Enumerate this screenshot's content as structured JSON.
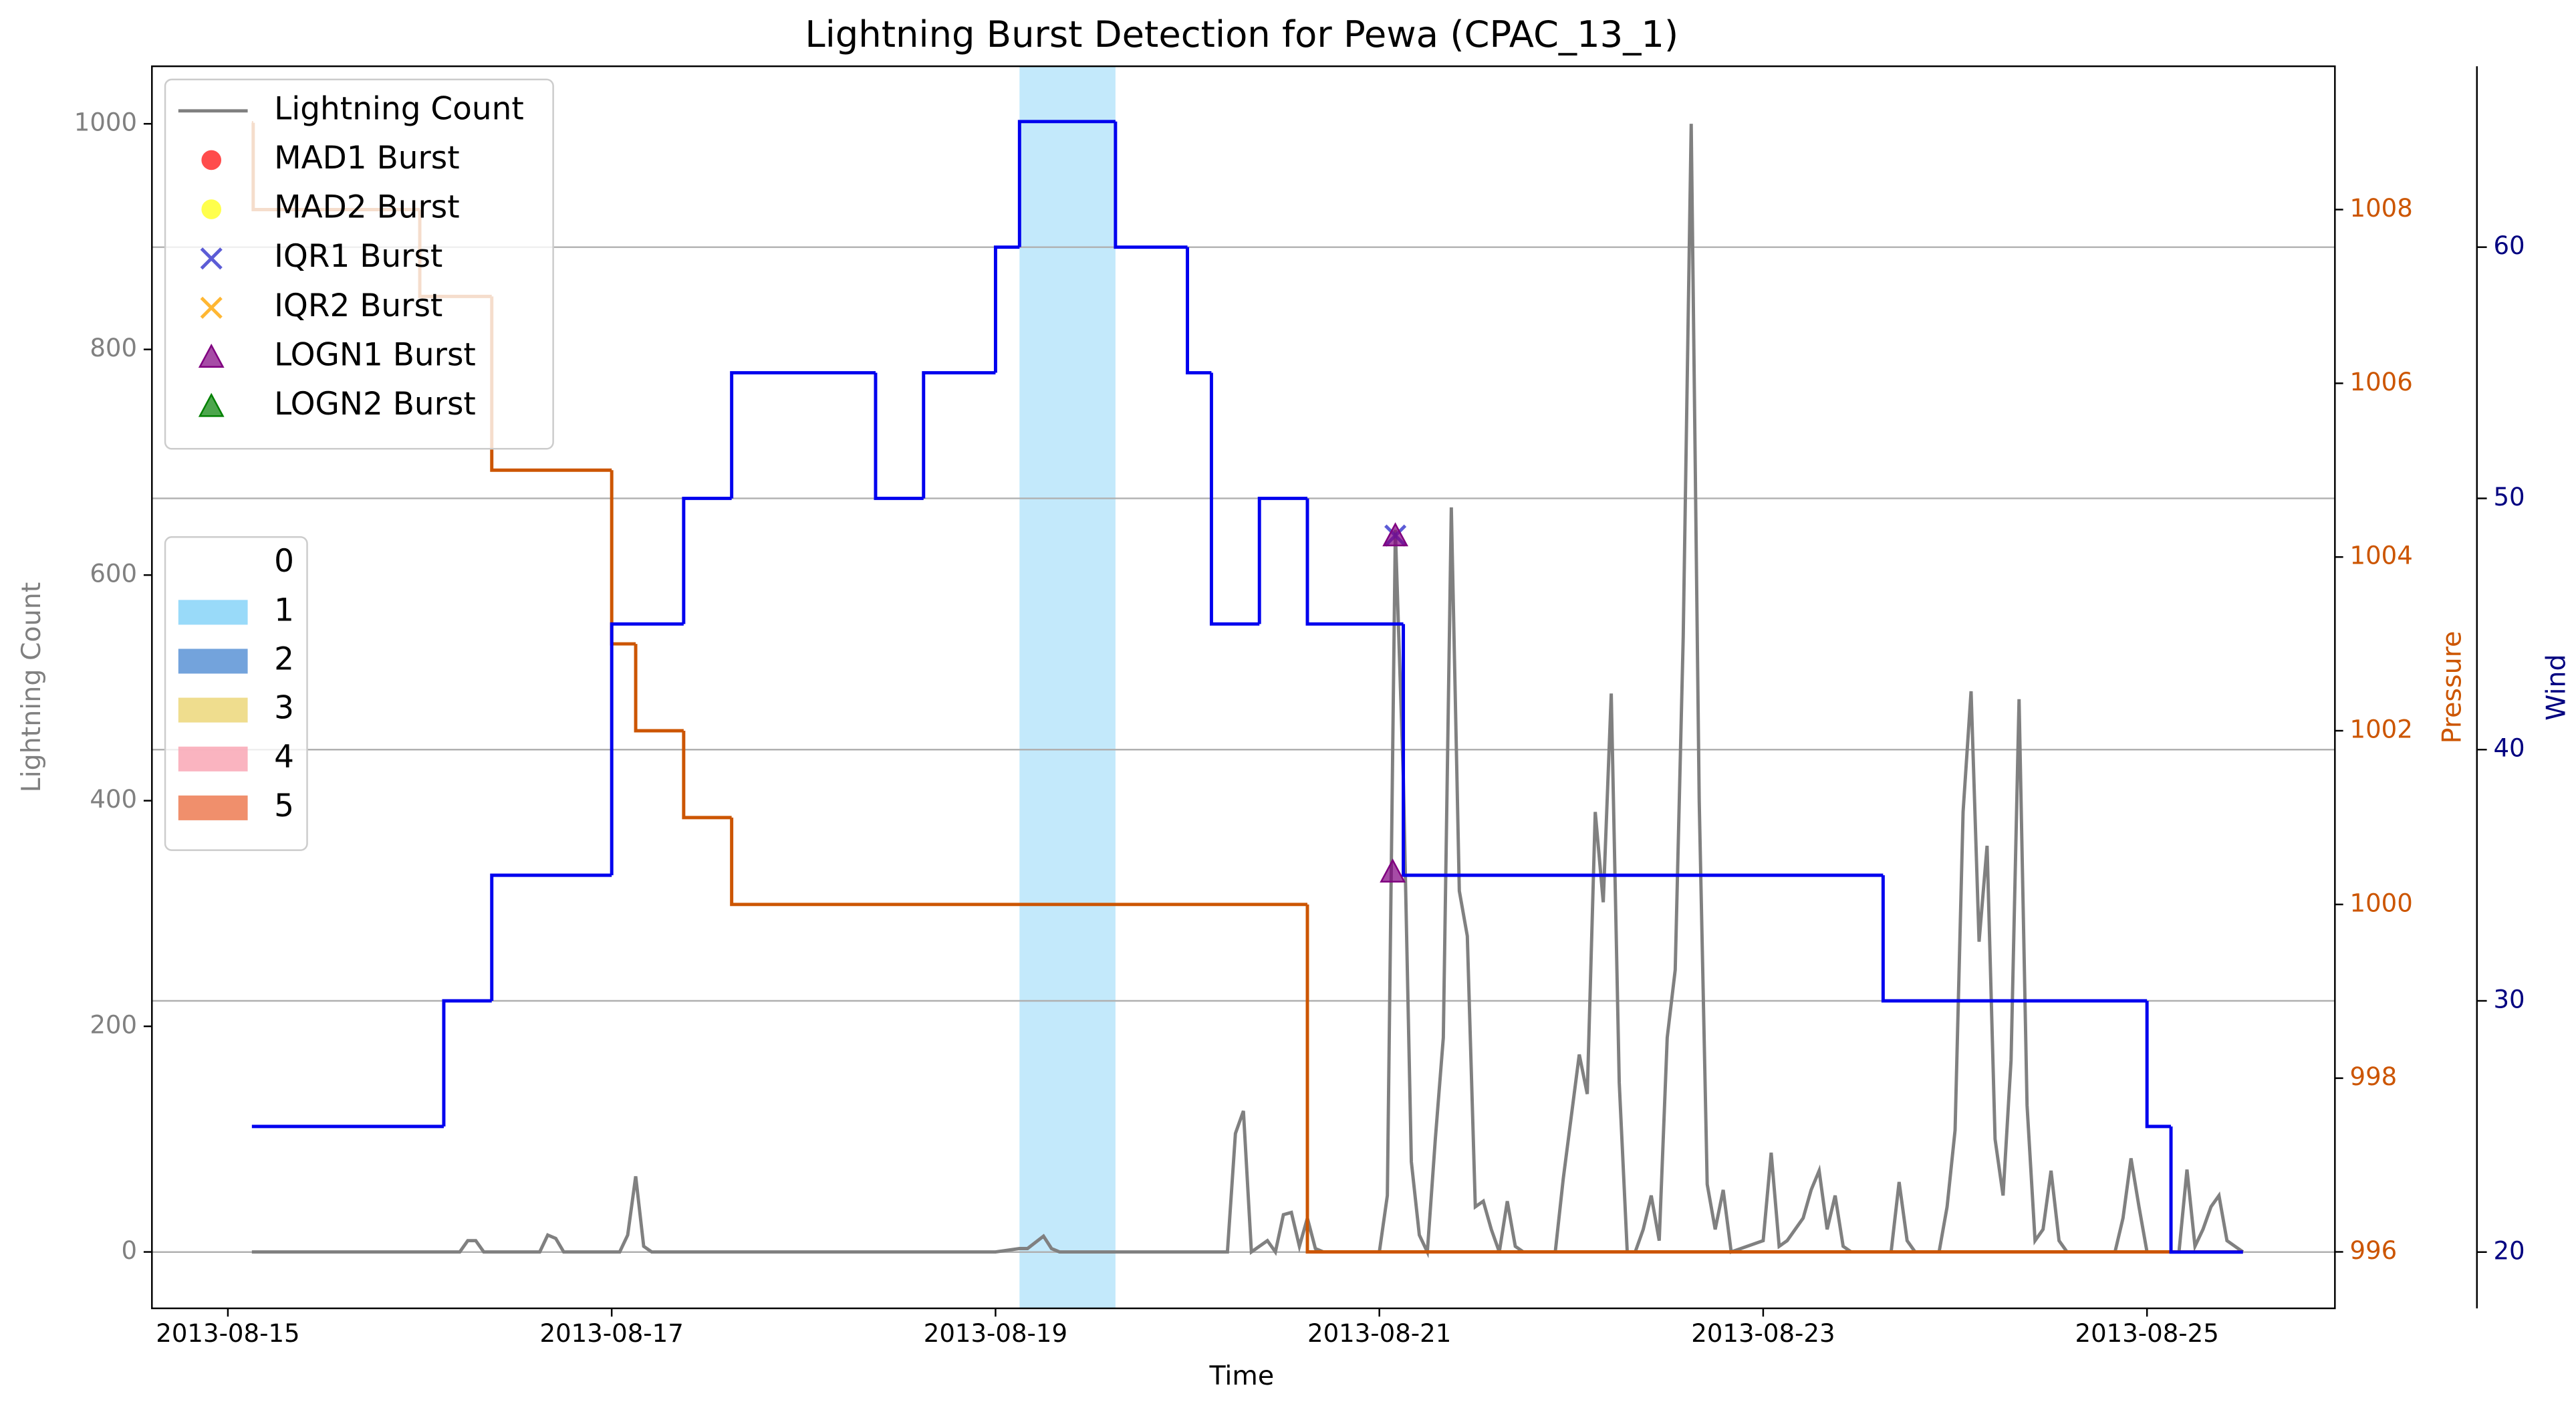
{
  "chart_data": {
    "type": "line",
    "title": "Lightning Burst Detection for Pewa (CPAC_13_1)",
    "xlabel": "Time",
    "ylabel": "Lightning Count",
    "y2label": "Pressure",
    "y3label": "Wind",
    "xlim": [
      "2013-08-14 14:30",
      "2013-08-25 23:30"
    ],
    "xticks": [
      "2013-08-15",
      "2013-08-17",
      "2013-08-19",
      "2013-08-21",
      "2013-08-23",
      "2013-08-25"
    ],
    "ylim": [
      -50,
      1051
    ],
    "yticks": [
      0,
      200,
      400,
      600,
      800,
      1000
    ],
    "y2lim": [
      995.35,
      1009.65
    ],
    "y2ticks": [
      996,
      998,
      1000,
      1002,
      1004,
      1006,
      1008
    ],
    "y3lim": [
      17.76,
      67.2
    ],
    "y3ticks": [
      20,
      30,
      40,
      50,
      60
    ],
    "grid": "y3",
    "legend": "upper left",
    "spans": [
      {
        "start": "2013-08-19 03:00",
        "end": "2013-08-19 15:00",
        "category": 1
      }
    ],
    "span_legend": {
      "labels": [
        "0",
        "1",
        "2",
        "3",
        "4",
        "5"
      ],
      "colors": [
        "#ffffff",
        "#87d3f8",
        "#5a93d6",
        "#ecd77a",
        "#f9a7b5",
        "#ed7b52"
      ]
    },
    "series": [
      {
        "name": "Lightning Count",
        "type": "line",
        "color": "#808080",
        "x": [
          "2013-08-15 03:00",
          "2013-08-16 05:00",
          "2013-08-16 06:00",
          "2013-08-16 07:00",
          "2013-08-16 08:00",
          "2013-08-16 15:00",
          "2013-08-16 16:00",
          "2013-08-16 17:00",
          "2013-08-16 18:00",
          "2013-08-17 01:00",
          "2013-08-17 02:00",
          "2013-08-17 03:00",
          "2013-08-17 04:00",
          "2013-08-17 05:00",
          "2013-08-19 00:00",
          "2013-08-19 03:00",
          "2013-08-19 04:00",
          "2013-08-19 06:00",
          "2013-08-19 07:00",
          "2013-08-19 08:00",
          "2013-08-20 05:00",
          "2013-08-20 06:00",
          "2013-08-20 07:00",
          "2013-08-20 08:00",
          "2013-08-20 10:00",
          "2013-08-20 11:00",
          "2013-08-20 12:00",
          "2013-08-20 13:00",
          "2013-08-20 14:00",
          "2013-08-20 15:00",
          "2013-08-20 16:00",
          "2013-08-20 17:00",
          "2013-08-21 00:00",
          "2013-08-21 01:00",
          "2013-08-21 02:00",
          "2013-08-21 03:00",
          "2013-08-21 04:00",
          "2013-08-21 05:00",
          "2013-08-21 06:00",
          "2013-08-21 07:00",
          "2013-08-21 08:00",
          "2013-08-21 09:00",
          "2013-08-21 10:00",
          "2013-08-21 11:00",
          "2013-08-21 12:00",
          "2013-08-21 13:00",
          "2013-08-21 14:00",
          "2013-08-21 15:00",
          "2013-08-21 16:00",
          "2013-08-21 17:00",
          "2013-08-21 18:00",
          "2013-08-21 22:00",
          "2013-08-21 23:00",
          "2013-08-22 00:00",
          "2013-08-22 01:00",
          "2013-08-22 02:00",
          "2013-08-22 03:00",
          "2013-08-22 04:00",
          "2013-08-22 05:00",
          "2013-08-22 06:00",
          "2013-08-22 07:00",
          "2013-08-22 08:00",
          "2013-08-22 09:00",
          "2013-08-22 10:00",
          "2013-08-22 11:00",
          "2013-08-22 12:00",
          "2013-08-22 13:00",
          "2013-08-22 14:00",
          "2013-08-22 15:00",
          "2013-08-22 16:00",
          "2013-08-22 17:00",
          "2013-08-22 18:00",
          "2013-08-22 19:00",
          "2013-08-22 20:00",
          "2013-08-23 00:00",
          "2013-08-23 01:00",
          "2013-08-23 02:00",
          "2013-08-23 03:00",
          "2013-08-23 04:00",
          "2013-08-23 05:00",
          "2013-08-23 06:00",
          "2013-08-23 07:00",
          "2013-08-23 08:00",
          "2013-08-23 09:00",
          "2013-08-23 10:00",
          "2013-08-23 11:00",
          "2013-08-23 16:00",
          "2013-08-23 17:00",
          "2013-08-23 18:00",
          "2013-08-23 19:00",
          "2013-08-23 22:00",
          "2013-08-23 23:00",
          "2013-08-24 00:00",
          "2013-08-24 01:00",
          "2013-08-24 02:00",
          "2013-08-24 03:00",
          "2013-08-24 04:00",
          "2013-08-24 05:00",
          "2013-08-24 06:00",
          "2013-08-24 07:00",
          "2013-08-24 08:00",
          "2013-08-24 09:00",
          "2013-08-24 10:00",
          "2013-08-24 11:00",
          "2013-08-24 12:00",
          "2013-08-24 13:00",
          "2013-08-24 14:00",
          "2013-08-24 20:00",
          "2013-08-24 21:00",
          "2013-08-24 22:00",
          "2013-08-24 23:00",
          "2013-08-25 00:00",
          "2013-08-25 04:00",
          "2013-08-25 05:00",
          "2013-08-25 06:00",
          "2013-08-25 07:00",
          "2013-08-25 08:00",
          "2013-08-25 09:00",
          "2013-08-25 10:00",
          "2013-08-25 11:00",
          "2013-08-25 12:00"
        ],
        "values": [
          0,
          0,
          10,
          10,
          0,
          0,
          15,
          12,
          0,
          0,
          15,
          67,
          5,
          0,
          0,
          3,
          3,
          14,
          3,
          0,
          0,
          105,
          125,
          0,
          10,
          0,
          33,
          35,
          5,
          30,
          3,
          0,
          0,
          50,
          640,
          420,
          80,
          15,
          0,
          100,
          190,
          660,
          320,
          280,
          40,
          45,
          20,
          0,
          45,
          5,
          0,
          0,
          65,
          120,
          175,
          140,
          390,
          310,
          495,
          150,
          0,
          0,
          20,
          50,
          10,
          190,
          250,
          545,
          1000,
          400,
          60,
          20,
          55,
          0,
          10,
          88,
          5,
          10,
          20,
          30,
          55,
          72,
          20,
          50,
          5,
          0,
          0,
          62,
          10,
          0,
          0,
          40,
          108,
          390,
          497,
          275,
          360,
          100,
          50,
          170,
          490,
          130,
          10,
          20,
          72,
          10,
          0,
          0,
          30,
          83,
          40,
          0,
          0,
          73,
          5,
          20,
          40,
          50,
          10,
          5,
          0
        ]
      },
      {
        "name": "MAD1 Burst",
        "type": "scatter",
        "marker": "circle",
        "color": "#ff0000",
        "x": [],
        "values": []
      },
      {
        "name": "MAD2 Burst",
        "type": "scatter",
        "marker": "circle",
        "color": "#ffff00",
        "x": [],
        "values": []
      },
      {
        "name": "IQR1 Burst",
        "type": "scatter",
        "marker": "x",
        "color": "#3333cc",
        "x": [
          "2013-08-21 02:00"
        ],
        "values": [
          635
        ]
      },
      {
        "name": "IQR2 Burst",
        "type": "scatter",
        "marker": "x",
        "color": "#ffa500",
        "x": [],
        "values": []
      },
      {
        "name": "LOGN1 Burst",
        "type": "scatter",
        "marker": "triangle",
        "color": "#800080",
        "x": [
          "2013-08-21 01:40",
          "2013-08-21 02:00"
        ],
        "values": [
          337,
          635
        ]
      },
      {
        "name": "LOGN2 Burst",
        "type": "scatter",
        "marker": "triangle",
        "color": "#008000",
        "x": [],
        "values": []
      },
      {
        "type": "step",
        "axis": "y2",
        "color": "#cc5500",
        "x": [
          "2013-08-15 03:00",
          "2013-08-15 03:10",
          "2013-08-16 00:00",
          "2013-08-16 09:00",
          "2013-08-17 00:00",
          "2013-08-17 03:00",
          "2013-08-17 09:00",
          "2013-08-17 15:00",
          "2013-08-20 15:00",
          "2013-08-25 12:00"
        ],
        "values": [
          1009,
          1008,
          1007,
          1005,
          1003,
          1002,
          1001,
          1000,
          996,
          996
        ]
      },
      {
        "type": "step",
        "axis": "y3",
        "color": "#0000ee",
        "x": [
          "2013-08-15 03:00",
          "2013-08-16 03:00",
          "2013-08-16 09:00",
          "2013-08-17 00:00",
          "2013-08-17 09:00",
          "2013-08-17 15:00",
          "2013-08-18 09:00",
          "2013-08-18 15:00",
          "2013-08-19 00:00",
          "2013-08-19 03:00",
          "2013-08-19 15:00",
          "2013-08-20 00:00",
          "2013-08-20 03:00",
          "2013-08-20 09:00",
          "2013-08-20 15:00",
          "2013-08-21 03:00",
          "2013-08-23 15:00",
          "2013-08-25 00:00",
          "2013-08-25 03:00",
          "2013-08-25 12:00"
        ],
        "values": [
          25,
          30,
          35,
          45,
          50,
          55,
          50,
          55,
          60,
          65,
          60,
          55,
          45,
          50,
          45,
          35,
          30,
          25,
          20,
          20
        ]
      }
    ]
  }
}
